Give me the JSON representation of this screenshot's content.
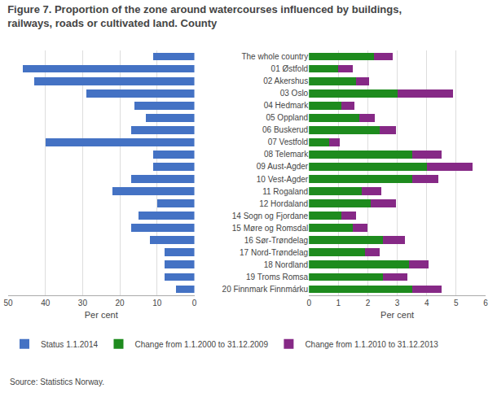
{
  "chart_data": [
    {
      "type": "bar",
      "orientation": "horizontal",
      "title": "Figure 7. Proportion of the zone around watercourses influenced by buildings,\nrailways, roads or cultivated land. County",
      "categories": [
        "The whole country",
        "01 Østfold",
        "02 Akershus",
        "03 Oslo",
        "04 Hedmark",
        "05 Oppland",
        "06 Buskerud",
        "07 Vestfold",
        "08 Telemark",
        "09 Aust-Agder",
        "10 Vest-Agder",
        "11 Rogaland",
        "12 Hordaland",
        "14 Sogn og Fjordane",
        "15 Møre og Romsdal",
        "16 Sør-Trøndelag",
        "17 Nord-Trøndelag",
        "18 Nordland",
        "19 Troms Romsa",
        "20 Finnmark Finnmárku"
      ],
      "series": [
        {
          "name": "Status 1.1.2014",
          "color": "#4472C4",
          "values": [
            11,
            46,
            43,
            29,
            16,
            13,
            17,
            40,
            11,
            11,
            17,
            22,
            10,
            15,
            17,
            12,
            8,
            8,
            8,
            5
          ]
        }
      ],
      "xlabel": "Per cent",
      "xlim": [
        50,
        0
      ],
      "xticks": [
        50,
        40,
        30,
        20,
        10,
        0
      ],
      "grid": true,
      "legend": "lower left",
      "annotations": [
        "Source: Statistics Norway."
      ]
    },
    {
      "type": "bar",
      "orientation": "horizontal",
      "stacked": true,
      "categories": [
        "The whole country",
        "01 Østfold",
        "02 Akershus",
        "03 Oslo",
        "04 Hedmark",
        "05 Oppland",
        "06 Buskerud",
        "07 Vestfold",
        "08 Telemark",
        "09 Aust-Agder",
        "10 Vest-Agder",
        "11 Rogaland",
        "12 Hordaland",
        "14 Sogn og Fjordane",
        "15 Møre og Romsdal",
        "16 Sør-Trøndelag",
        "17 Nord-Trøndelag",
        "18 Nordland",
        "19 Troms Romsa",
        "20 Finnmark Finnmárku"
      ],
      "series": [
        {
          "name": "Change from 1.1.2000 to 31.12.2009",
          "color": "#1E8B1E",
          "values": [
            2.2,
            1.0,
            1.6,
            3.0,
            1.1,
            1.7,
            2.4,
            0.7,
            3.5,
            4.0,
            3.5,
            1.8,
            2.1,
            1.1,
            1.5,
            2.5,
            1.9,
            3.4,
            2.5,
            3.5
          ]
        },
        {
          "name": "Change from 1.1.2010 to 31.12.2013",
          "color": "#862986",
          "values": [
            0.65,
            0.5,
            0.45,
            1.9,
            0.45,
            0.55,
            0.55,
            0.35,
            1.0,
            1.55,
            0.9,
            0.65,
            0.85,
            0.5,
            0.5,
            0.75,
            0.5,
            0.65,
            0.85,
            1.0
          ]
        }
      ],
      "xlabel": "Per cent",
      "xlim": [
        0,
        6
      ],
      "xticks": [
        0,
        1,
        2,
        3,
        4,
        5,
        6
      ],
      "grid": true,
      "legend": "lower left"
    }
  ]
}
